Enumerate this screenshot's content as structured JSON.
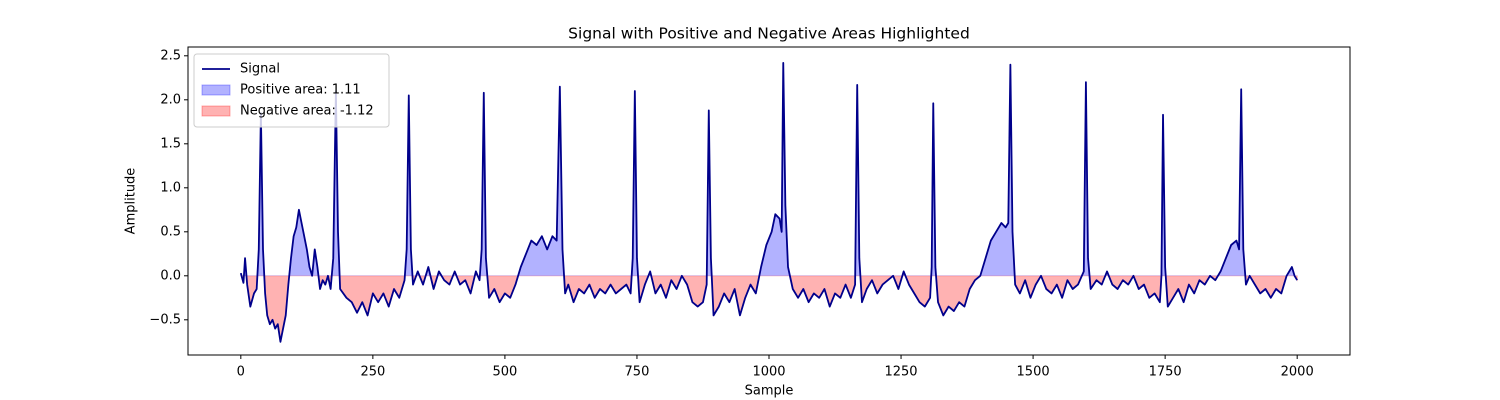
{
  "chart_data": {
    "type": "line",
    "title": "Signal with Positive and Negative Areas Highlighted",
    "xlabel": "Sample",
    "ylabel": "Amplitude",
    "xlim": [
      -100,
      2100
    ],
    "ylim": [
      -0.9,
      2.6
    ],
    "xticks": [
      0,
      250,
      500,
      750,
      1000,
      1250,
      1500,
      1750,
      2000
    ],
    "yticks": [
      {
        "value": -0.5,
        "label": "−0.5"
      },
      {
        "value": 0,
        "label": "0.0"
      },
      0.5,
      {
        "value": 1,
        "label": "1.0"
      },
      1.5,
      {
        "value": 2,
        "label": "2.0"
      },
      2.5
    ],
    "legend": "upper left",
    "x": [
      0,
      5,
      8,
      12,
      18,
      25,
      30,
      34,
      38,
      42,
      46,
      50,
      55,
      60,
      65,
      70,
      75,
      80,
      85,
      90,
      95,
      100,
      105,
      110,
      115,
      120,
      125,
      130,
      135,
      140,
      145,
      150,
      155,
      160,
      165,
      170,
      175,
      180,
      184,
      188,
      200,
      210,
      220,
      230,
      240,
      250,
      260,
      270,
      280,
      290,
      300,
      310,
      314,
      318,
      322,
      326,
      335,
      345,
      355,
      365,
      375,
      385,
      395,
      405,
      415,
      425,
      435,
      445,
      452,
      456,
      460,
      464,
      470,
      480,
      490,
      500,
      510,
      520,
      530,
      540,
      550,
      560,
      570,
      580,
      590,
      598,
      604,
      609,
      614,
      620,
      630,
      640,
      650,
      660,
      670,
      680,
      690,
      700,
      710,
      720,
      730,
      738,
      742,
      746,
      750,
      755,
      765,
      775,
      785,
      795,
      805,
      815,
      825,
      835,
      845,
      855,
      865,
      875,
      882,
      886,
      890,
      895,
      905,
      915,
      925,
      935,
      945,
      955,
      965,
      975,
      985,
      995,
      1005,
      1012,
      1020,
      1024,
      1027,
      1031,
      1036,
      1045,
      1055,
      1065,
      1075,
      1085,
      1095,
      1105,
      1115,
      1125,
      1135,
      1145,
      1155,
      1163,
      1167,
      1171,
      1176,
      1185,
      1195,
      1205,
      1215,
      1225,
      1235,
      1245,
      1255,
      1265,
      1275,
      1285,
      1295,
      1305,
      1308,
      1311,
      1315,
      1320,
      1330,
      1340,
      1350,
      1360,
      1370,
      1380,
      1390,
      1400,
      1410,
      1420,
      1430,
      1440,
      1448,
      1453,
      1457,
      1461,
      1466,
      1475,
      1485,
      1495,
      1505,
      1515,
      1525,
      1535,
      1545,
      1555,
      1565,
      1575,
      1585,
      1596,
      1600,
      1604,
      1609,
      1620,
      1630,
      1640,
      1650,
      1660,
      1670,
      1680,
      1690,
      1700,
      1710,
      1720,
      1730,
      1740,
      1743,
      1746,
      1750,
      1755,
      1765,
      1775,
      1785,
      1795,
      1805,
      1815,
      1825,
      1835,
      1845,
      1855,
      1865,
      1875,
      1885,
      1890,
      1894,
      1898,
      1903,
      1910,
      1920,
      1930,
      1940,
      1950,
      1960,
      1970,
      1980,
      1990,
      1995,
      2000
    ],
    "series": [
      {
        "name": "Signal",
        "color": "#00008b",
        "values": [
          0.03,
          -0.08,
          0.2,
          -0.1,
          -0.35,
          -0.2,
          -0.15,
          0.3,
          1.85,
          0.3,
          -0.2,
          -0.45,
          -0.55,
          -0.5,
          -0.6,
          -0.55,
          -0.75,
          -0.6,
          -0.45,
          -0.1,
          0.2,
          0.45,
          0.55,
          0.75,
          0.6,
          0.45,
          0.3,
          0.1,
          0.0,
          0.3,
          0.1,
          -0.15,
          -0.05,
          -0.1,
          0.0,
          -0.15,
          0.2,
          2.1,
          0.5,
          -0.15,
          -0.25,
          -0.3,
          -0.42,
          -0.3,
          -0.45,
          -0.2,
          -0.3,
          -0.2,
          -0.35,
          -0.15,
          -0.25,
          -0.05,
          0.3,
          2.05,
          0.3,
          -0.1,
          0.05,
          -0.1,
          0.1,
          -0.15,
          0.05,
          -0.05,
          -0.1,
          0.05,
          -0.1,
          -0.05,
          -0.2,
          0.05,
          -0.05,
          0.3,
          2.08,
          0.2,
          -0.25,
          -0.15,
          -0.3,
          -0.2,
          -0.25,
          -0.1,
          0.1,
          0.25,
          0.4,
          0.35,
          0.45,
          0.3,
          0.45,
          0.4,
          2.15,
          0.3,
          -0.2,
          -0.1,
          -0.3,
          -0.15,
          -0.2,
          -0.1,
          -0.25,
          -0.15,
          -0.2,
          -0.1,
          -0.2,
          -0.15,
          -0.1,
          -0.2,
          0.2,
          2.1,
          0.2,
          -0.3,
          -0.1,
          0.05,
          -0.2,
          -0.1,
          -0.25,
          -0.05,
          -0.15,
          0.0,
          -0.1,
          -0.3,
          -0.35,
          -0.3,
          -0.1,
          1.88,
          0.2,
          -0.45,
          -0.35,
          -0.2,
          -0.3,
          -0.15,
          -0.45,
          -0.25,
          -0.1,
          -0.2,
          0.1,
          0.35,
          0.5,
          0.7,
          0.65,
          0.5,
          2.42,
          0.8,
          0.1,
          -0.15,
          -0.25,
          -0.15,
          -0.3,
          -0.2,
          -0.25,
          -0.15,
          -0.35,
          -0.2,
          -0.25,
          -0.1,
          -0.25,
          -0.1,
          2.17,
          0.2,
          -0.3,
          -0.15,
          -0.05,
          -0.2,
          -0.1,
          -0.05,
          0.0,
          -0.15,
          0.05,
          -0.1,
          -0.2,
          -0.3,
          -0.35,
          -0.25,
          0.1,
          1.96,
          0.1,
          -0.3,
          -0.45,
          -0.35,
          -0.4,
          -0.3,
          -0.35,
          -0.15,
          -0.05,
          0.0,
          0.2,
          0.4,
          0.5,
          0.6,
          0.55,
          0.6,
          2.4,
          0.5,
          -0.1,
          -0.2,
          -0.05,
          -0.25,
          -0.1,
          0.0,
          -0.15,
          -0.2,
          -0.1,
          -0.25,
          -0.05,
          -0.15,
          -0.1,
          0.05,
          2.2,
          0.2,
          -0.15,
          -0.05,
          -0.1,
          0.05,
          -0.1,
          -0.15,
          -0.05,
          -0.1,
          0.0,
          -0.15,
          -0.1,
          -0.25,
          -0.2,
          -0.3,
          0.0,
          1.83,
          0.1,
          -0.35,
          -0.25,
          -0.15,
          -0.3,
          -0.1,
          -0.2,
          -0.05,
          -0.1,
          0.0,
          -0.05,
          0.05,
          0.2,
          0.35,
          0.4,
          0.3,
          2.12,
          0.3,
          -0.1,
          0.0,
          -0.1,
          -0.2,
          -0.15,
          -0.25,
          -0.15,
          -0.2,
          0.0,
          0.1,
          0.0,
          -0.05
        ]
      }
    ],
    "fills": [
      {
        "name": "Positive area: 1.11",
        "color": "#0000ff",
        "alpha": 0.3,
        "side": "positive"
      },
      {
        "name": "Negative area: -1.12",
        "color": "#ff0000",
        "alpha": 0.3,
        "side": "negative"
      }
    ]
  }
}
